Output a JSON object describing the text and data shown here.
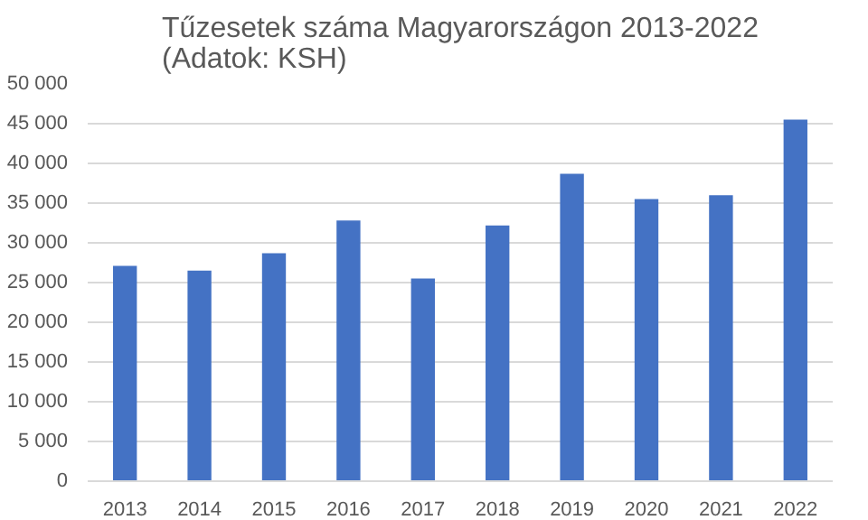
{
  "chart_data": {
    "type": "bar",
    "title": "Tűzesetek száma Magyarországon 2013-2022\n(Adatok: KSH)",
    "categories": [
      "2013",
      "2014",
      "2015",
      "2016",
      "2017",
      "2018",
      "2019",
      "2020",
      "2021",
      "2022"
    ],
    "values": [
      27100,
      26500,
      28700,
      32800,
      25500,
      32200,
      38700,
      35500,
      36000,
      45500
    ],
    "color": "#4472c4",
    "ylim": [
      0,
      50000
    ],
    "yticks": [
      0,
      {
        "value": 5000,
        "label": "5 000"
      },
      {
        "value": 10000,
        "label": "10 000"
      },
      {
        "value": 15000,
        "label": "15 000"
      },
      {
        "value": 20000,
        "label": "20 000"
      },
      {
        "value": 25000,
        "label": "25 000"
      },
      {
        "value": 30000,
        "label": "30 000"
      },
      {
        "value": 35000,
        "label": "35 000"
      },
      {
        "value": 40000,
        "label": "40 000"
      },
      {
        "value": 45000,
        "label": "45 000"
      },
      {
        "value": 50000,
        "label": "50 000"
      }
    ],
    "grid": "y"
  }
}
